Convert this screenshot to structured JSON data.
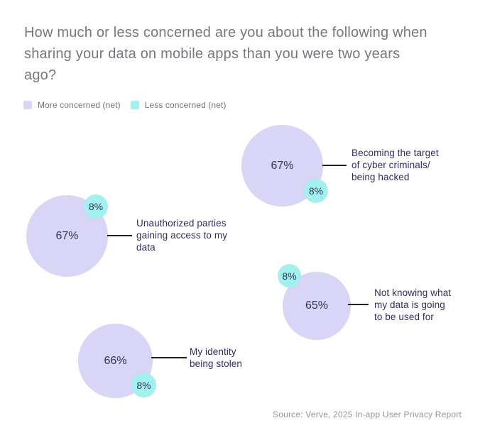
{
  "header": {
    "title": "How much or less concerned are you about the following when sharing your data on mobile apps than you were two years ago?"
  },
  "legend": {
    "items": [
      {
        "label": "More concerned (net)",
        "color": "#d9d5f6"
      },
      {
        "label": "Less concerned (net)",
        "color": "#a2f1ee"
      }
    ]
  },
  "groups": [
    {
      "main_value": "67%",
      "secondary_value": "8%",
      "label": "Becoming the target\nof cyber criminals/\nbeing hacked"
    },
    {
      "main_value": "67%",
      "secondary_value": "8%",
      "label": "Unauthorized parties\ngaining access to my\ndata"
    },
    {
      "main_value": "65%",
      "secondary_value": "8%",
      "label": "Not knowing what\nmy data is going\nto be used for"
    },
    {
      "main_value": "66%",
      "secondary_value": "8%",
      "label": "My identity\nbeing stolen"
    }
  ],
  "footer": {
    "source": "Source: Verve, 2025 In-app User Privacy Report"
  },
  "chart_data": {
    "type": "scatter",
    "variant": "paired-bubble",
    "title": "How much or less concerned are you about the following when sharing your data on mobile apps than you were two years ago?",
    "categories": [
      "Becoming the target of cyber criminals/being hacked",
      "Unauthorized parties gaining access to my data",
      "Not knowing what my data is going to be used for",
      "My identity being stolen"
    ],
    "series": [
      {
        "name": "More concerned (net)",
        "color": "#d9d5f6",
        "values": [
          67,
          67,
          65,
          66
        ]
      },
      {
        "name": "Less concerned (net)",
        "color": "#a2f1ee",
        "values": [
          8,
          8,
          8,
          8
        ]
      }
    ],
    "value_format": "percent",
    "legend_position": "top-left",
    "grid": false,
    "source": "Source: Verve, 2025 In-app User Privacy Report"
  }
}
